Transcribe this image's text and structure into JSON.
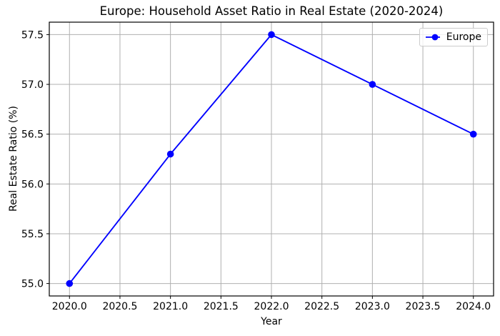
{
  "chart_data": {
    "type": "line",
    "title": "Europe: Household Asset Ratio in Real Estate (2020-2024)",
    "xlabel": "Year",
    "ylabel": "Real Estate Ratio (%)",
    "x": [
      2020,
      2021,
      2022,
      2023,
      2024
    ],
    "series": [
      {
        "name": "Europe",
        "values": [
          55.0,
          56.3,
          57.5,
          57.0,
          56.5
        ],
        "color": "#0000ff",
        "marker": "circle"
      }
    ],
    "xlim": [
      2019.8,
      2024.2
    ],
    "ylim": [
      54.875,
      57.625
    ],
    "xticks": [
      2020.0,
      2020.5,
      2021.0,
      2021.5,
      2022.0,
      2022.5,
      2023.0,
      2023.5,
      2024.0
    ],
    "xtick_labels": [
      "2020.0",
      "2020.5",
      "2021.0",
      "2021.5",
      "2022.0",
      "2022.5",
      "2023.0",
      "2023.5",
      "2024.0"
    ],
    "yticks": [
      55.0,
      55.5,
      56.0,
      56.5,
      57.0,
      57.5
    ],
    "ytick_labels": [
      "55.0",
      "55.5",
      "56.0",
      "56.5",
      "57.0",
      "57.5"
    ],
    "grid": true,
    "grid_color": "#b0b0b0",
    "spine_color": "#000000",
    "background_color": "#ffffff",
    "legend_position": "upper right",
    "legend_border_color": "#cccccc"
  }
}
